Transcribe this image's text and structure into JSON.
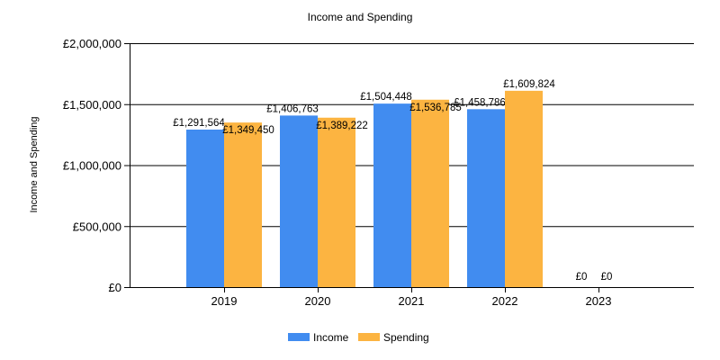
{
  "chart_data": {
    "type": "bar",
    "title": "Income and Spending",
    "xlabel": "",
    "ylabel": "Income and Spending",
    "categories": [
      "2019",
      "2020",
      "2021",
      "2022",
      "2023"
    ],
    "series": [
      {
        "name": "Income",
        "color": "#418CF0",
        "values": [
          1291564,
          1406763,
          1504448,
          1458786,
          0
        ],
        "labels": [
          "£1,291,564",
          "£1,406,763",
          "£1,504,448",
          "£1,458,786",
          "£0"
        ]
      },
      {
        "name": "Spending",
        "color": "#FCB441",
        "values": [
          1349450,
          1389222,
          1536785,
          1609824,
          0
        ],
        "labels": [
          "£1,349,450",
          "£1,389,222",
          "£1,536,785",
          "£1,609,824",
          "£0"
        ]
      }
    ],
    "ylim": [
      0,
      2000000
    ],
    "yticks": [
      0,
      500000,
      1000000,
      1500000,
      2000000
    ],
    "ytick_labels": [
      "£0",
      "£500,000",
      "£1,000,000",
      "£1,500,000",
      "£2,000,000"
    ],
    "grid": "horizontal",
    "legend_position": "bottom-center"
  }
}
